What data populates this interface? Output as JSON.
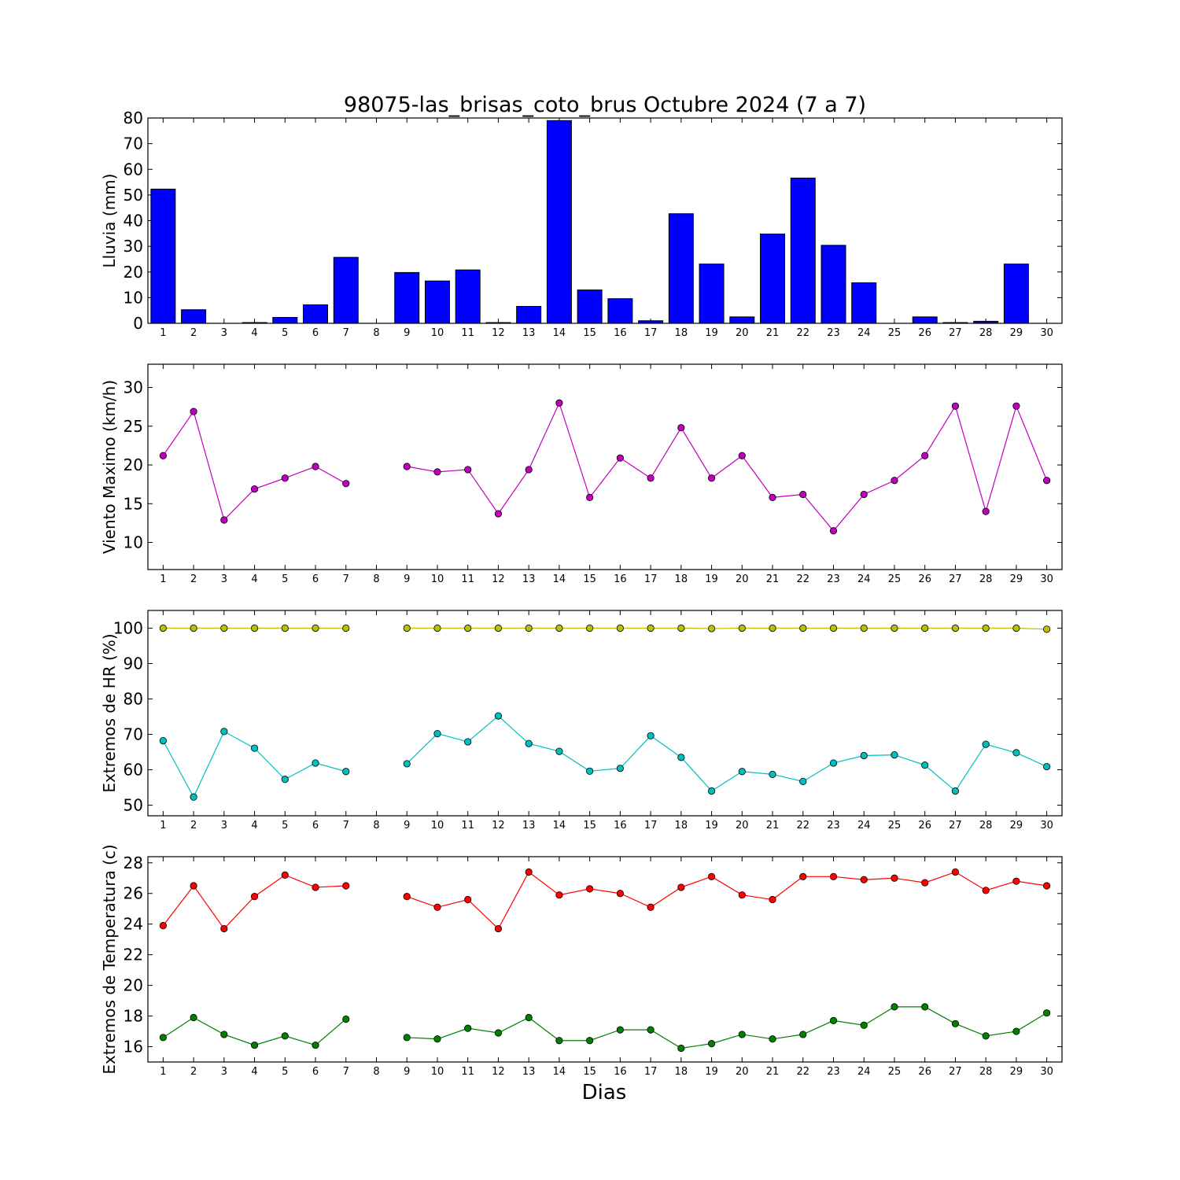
{
  "chart_data": [
    {
      "type": "bar",
      "title": "98075-las_brisas_coto_brus Octubre 2024  (7 a 7)",
      "ylabel": "Lluvia (mm)",
      "ylim": [
        0,
        80
      ],
      "yticks": [
        0,
        10,
        20,
        30,
        40,
        50,
        60,
        70,
        80
      ],
      "xticks": [
        1,
        2,
        3,
        4,
        5,
        6,
        7,
        8,
        9,
        10,
        11,
        12,
        13,
        14,
        15,
        16,
        17,
        18,
        19,
        20,
        21,
        22,
        23,
        24,
        25,
        26,
        27,
        28,
        29,
        30
      ],
      "series": [
        {
          "color": "#0000ff",
          "values": [
            52.3,
            5.3,
            0.0,
            0.3,
            2.3,
            7.2,
            25.7,
            null,
            19.8,
            16.5,
            20.8,
            0.3,
            6.6,
            79.0,
            13.0,
            9.6,
            1.0,
            42.7,
            23.1,
            2.5,
            34.8,
            56.6,
            30.4,
            15.8,
            0.0,
            2.5,
            0.3,
            0.8,
            23.1,
            0.0
          ]
        }
      ]
    },
    {
      "type": "line",
      "ylabel": "Viento Maximo (km/h)",
      "ylim": [
        6.5,
        33
      ],
      "yticks": [
        10,
        15,
        20,
        25,
        30
      ],
      "xticks": [
        1,
        2,
        3,
        4,
        5,
        6,
        7,
        8,
        9,
        10,
        11,
        12,
        13,
        14,
        15,
        16,
        17,
        18,
        19,
        20,
        21,
        22,
        23,
        24,
        25,
        26,
        27,
        28,
        29,
        30
      ],
      "series": [
        {
          "color": "#bf00bf",
          "values": [
            21.2,
            26.9,
            12.9,
            16.9,
            18.3,
            19.8,
            17.6,
            null,
            19.8,
            19.1,
            19.4,
            13.7,
            19.4,
            28.0,
            15.8,
            20.9,
            18.3,
            24.8,
            18.3,
            21.2,
            15.8,
            16.2,
            11.5,
            16.2,
            18.0,
            21.2,
            27.6,
            14.0,
            27.6,
            18.0
          ]
        }
      ]
    },
    {
      "type": "line",
      "ylabel": "Extremos de HR (%)",
      "ylim": [
        47,
        105
      ],
      "yticks": [
        50,
        60,
        70,
        80,
        90,
        100
      ],
      "xticks": [
        1,
        2,
        3,
        4,
        5,
        6,
        7,
        8,
        9,
        10,
        11,
        12,
        13,
        14,
        15,
        16,
        17,
        18,
        19,
        20,
        21,
        22,
        23,
        24,
        25,
        26,
        27,
        28,
        29,
        30
      ],
      "series": [
        {
          "color": "#bfbf00",
          "values": [
            100,
            100,
            100,
            100,
            100,
            100,
            100,
            null,
            100,
            100,
            100,
            100,
            100,
            100,
            100,
            100,
            100,
            100,
            99.9,
            100,
            100,
            100,
            100,
            100,
            100,
            100,
            100,
            100,
            100,
            99.7
          ]
        },
        {
          "color": "#00bfbf",
          "values": [
            68.2,
            52.3,
            70.8,
            66.1,
            57.3,
            61.9,
            59.5,
            null,
            61.7,
            70.2,
            67.9,
            75.2,
            67.4,
            65.2,
            59.6,
            60.4,
            69.6,
            63.5,
            54.0,
            59.5,
            58.7,
            56.7,
            61.9,
            64.0,
            64.2,
            61.3,
            54.0,
            67.2,
            64.8,
            60.9
          ]
        }
      ]
    },
    {
      "type": "line",
      "ylabel": "Extremos de Temperatura (c)",
      "xlabel": "Dias",
      "ylim": [
        15,
        28.4
      ],
      "yticks": [
        16,
        18,
        20,
        22,
        24,
        26,
        28
      ],
      "xticks": [
        1,
        2,
        3,
        4,
        5,
        6,
        7,
        8,
        9,
        10,
        11,
        12,
        13,
        14,
        15,
        16,
        17,
        18,
        19,
        20,
        21,
        22,
        23,
        24,
        25,
        26,
        27,
        28,
        29,
        30
      ],
      "series": [
        {
          "color": "#ff0000",
          "values": [
            23.9,
            26.5,
            23.7,
            25.8,
            27.2,
            26.4,
            26.5,
            null,
            25.8,
            25.1,
            25.6,
            23.7,
            27.4,
            25.9,
            26.3,
            26.0,
            25.1,
            26.4,
            27.1,
            25.9,
            25.6,
            27.1,
            27.1,
            26.9,
            27.0,
            26.7,
            27.4,
            26.2,
            26.8,
            26.5
          ]
        },
        {
          "color": "#007f00",
          "values": [
            16.6,
            17.9,
            16.8,
            16.1,
            16.7,
            16.1,
            17.8,
            null,
            16.6,
            16.5,
            17.2,
            16.9,
            17.9,
            16.4,
            16.4,
            17.1,
            17.1,
            15.9,
            16.2,
            16.8,
            16.5,
            16.8,
            17.7,
            17.4,
            18.6,
            18.6,
            17.5,
            16.7,
            17.0,
            18.2
          ]
        }
      ]
    }
  ]
}
